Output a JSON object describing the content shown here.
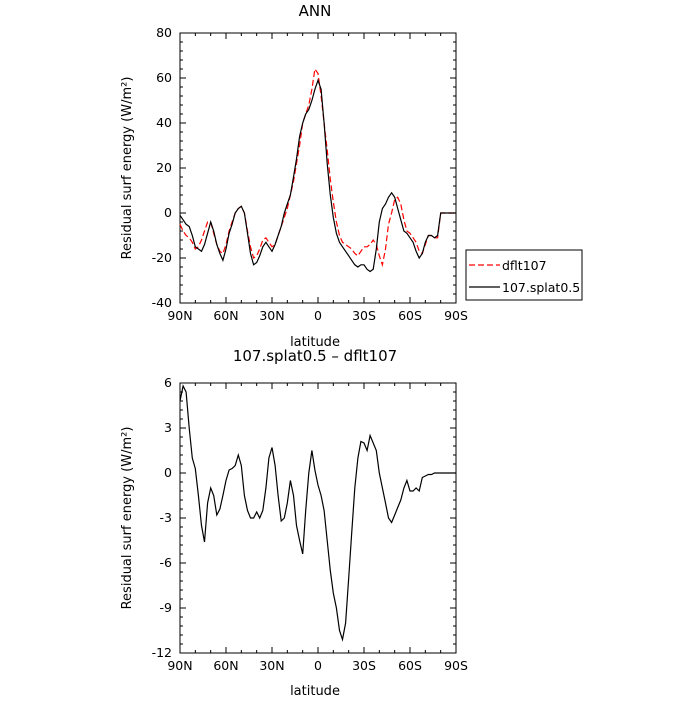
{
  "chart_data": [
    {
      "type": "line",
      "title": "ANN",
      "xlabel": "latitude",
      "ylabel": "Residual surf energy (W/m²)",
      "ylim": [
        -40,
        80
      ],
      "yticks": [
        "80",
        "60",
        "40",
        "20",
        "0",
        "-20",
        "-40"
      ],
      "xlim": [
        90,
        -90
      ],
      "xticks": [
        "90N",
        "60N",
        "30N",
        "0",
        "30S",
        "60S",
        "90S"
      ],
      "legend": "right",
      "series": [
        {
          "name": "dflt107",
          "color": "#ff0000",
          "style": "dashed",
          "x": [
            90,
            88,
            86,
            84,
            82,
            80,
            78,
            76,
            74,
            72,
            70,
            68,
            66,
            64,
            62,
            60,
            58,
            56,
            54,
            52,
            50,
            48,
            46,
            44,
            42,
            40,
            38,
            36,
            34,
            32,
            30,
            28,
            26,
            24,
            22,
            20,
            18,
            16,
            14,
            12,
            10,
            8,
            6,
            4,
            2,
            0,
            -2,
            -4,
            -6,
            -8,
            -10,
            -12,
            -14,
            -16,
            -18,
            -20,
            -22,
            -24,
            -26,
            -28,
            -30,
            -32,
            -34,
            -36,
            -38,
            -40,
            -42,
            -44,
            -46,
            -48,
            -50,
            -52,
            -54,
            -56,
            -58,
            -60,
            -62,
            -64,
            -66,
            -68,
            -70,
            -72,
            -74,
            -76,
            -78,
            -80,
            -82,
            -84,
            -86,
            -88,
            -90
          ],
          "y": [
            -5,
            -8,
            -10,
            -11,
            -13,
            -16,
            -15,
            -12,
            -8,
            -4,
            -4,
            -9,
            -14,
            -17,
            -18,
            -14,
            -8,
            -4,
            0,
            2,
            3,
            0,
            -8,
            -15,
            -20,
            -19,
            -16,
            -12,
            -11,
            -13,
            -15,
            -14,
            -10,
            -6,
            -2,
            2,
            8,
            14,
            22,
            30,
            40,
            44,
            48,
            55,
            64,
            62,
            52,
            40,
            28,
            15,
            5,
            -4,
            -10,
            -13,
            -14,
            -15,
            -16,
            -18,
            -19,
            -17,
            -15,
            -15,
            -14,
            -12,
            -14,
            -19,
            -23,
            -16,
            -5,
            0,
            6,
            7,
            4,
            -3,
            -8,
            -9,
            -11,
            -13,
            -17,
            -18,
            -14,
            -10,
            -10,
            -11,
            -11,
            0,
            0,
            0,
            0,
            0,
            0
          ]
        },
        {
          "name": "107.splat0.5",
          "color": "#000000",
          "style": "solid",
          "x": [
            90,
            88,
            86,
            84,
            82,
            80,
            78,
            76,
            74,
            72,
            70,
            68,
            66,
            64,
            62,
            60,
            58,
            56,
            54,
            52,
            50,
            48,
            46,
            44,
            42,
            40,
            38,
            36,
            34,
            32,
            30,
            28,
            26,
            24,
            22,
            20,
            18,
            16,
            14,
            12,
            10,
            8,
            6,
            4,
            2,
            0,
            -2,
            -4,
            -6,
            -8,
            -10,
            -12,
            -14,
            -16,
            -18,
            -20,
            -22,
            -24,
            -26,
            -28,
            -30,
            -32,
            -34,
            -36,
            -38,
            -40,
            -42,
            -44,
            -46,
            -48,
            -50,
            -52,
            -54,
            -56,
            -58,
            -60,
            -62,
            -64,
            -66,
            -68,
            -70,
            -72,
            -74,
            -76,
            -78,
            -80,
            -82,
            -84,
            -86,
            -88,
            -90
          ],
          "y": [
            -1,
            -3,
            -5,
            -6,
            -10,
            -15,
            -16,
            -17,
            -14,
            -9,
            -4,
            -8,
            -14,
            -18,
            -21,
            -16,
            -9,
            -5,
            0,
            2,
            3,
            0,
            -9,
            -18,
            -23,
            -22,
            -19,
            -15,
            -13,
            -15,
            -17,
            -14,
            -10,
            -6,
            0,
            4,
            8,
            16,
            24,
            34,
            40,
            44,
            46,
            50,
            55,
            59,
            55,
            40,
            22,
            8,
            -2,
            -9,
            -13,
            -15,
            -17,
            -19,
            -21,
            -23,
            -24,
            -23,
            -23,
            -25,
            -26,
            -25,
            -16,
            -4,
            2,
            4,
            7,
            9,
            7,
            2,
            -3,
            -8,
            -9,
            -11,
            -13,
            -17,
            -20,
            -18,
            -13,
            -10,
            -10,
            -11,
            -10,
            0,
            0,
            0,
            0,
            0,
            0
          ]
        }
      ]
    },
    {
      "type": "line",
      "title": "107.splat0.5 – dflt107",
      "xlabel": "latitude",
      "ylabel": "Residual surf energy (W/m²)",
      "ylim": [
        -12,
        6
      ],
      "yticks": [
        "6",
        "3",
        "0",
        "-3",
        "-6",
        "-9",
        "-12"
      ],
      "xlim": [
        90,
        -90
      ],
      "xticks": [
        "90N",
        "60N",
        "30N",
        "0",
        "30S",
        "60S",
        "90S"
      ],
      "series": [
        {
          "color": "#000000",
          "style": "solid",
          "x": [
            90,
            88,
            86,
            84,
            82,
            80,
            78,
            76,
            74,
            72,
            70,
            68,
            66,
            64,
            62,
            60,
            58,
            56,
            54,
            52,
            50,
            48,
            46,
            44,
            42,
            40,
            38,
            36,
            34,
            32,
            30,
            28,
            26,
            24,
            22,
            20,
            18,
            16,
            14,
            12,
            10,
            8,
            6,
            4,
            2,
            0,
            -2,
            -4,
            -6,
            -8,
            -10,
            -12,
            -14,
            -16,
            -18,
            -20,
            -22,
            -24,
            -26,
            -28,
            -30,
            -32,
            -34,
            -36,
            -38,
            -40,
            -42,
            -44,
            -46,
            -48,
            -50,
            -52,
            -54,
            -56,
            -58,
            -60,
            -62,
            -64,
            -66,
            -68,
            -70,
            -72,
            -74,
            -76,
            -78,
            -80,
            -82,
            -84,
            -86,
            -88,
            -90
          ],
          "y": [
            4.8,
            5.8,
            5.4,
            3,
            1,
            0.3,
            -1.5,
            -3.5,
            -4.6,
            -2,
            -1,
            -1.5,
            -2.8,
            -2.4,
            -1.5,
            -0.5,
            0.2,
            0.3,
            0.5,
            1.2,
            0.5,
            -1.5,
            -2.5,
            -3,
            -3,
            -2.6,
            -3,
            -2.5,
            -1,
            1,
            1.7,
            0.5,
            -1.5,
            -3.2,
            -3,
            -2,
            -0.5,
            -1.5,
            -3.5,
            -4.5,
            -5.4,
            -2.5,
            0,
            1.5,
            0.2,
            -0.8,
            -1.5,
            -2.5,
            -4.5,
            -6.5,
            -8,
            -9,
            -10.5,
            -11.1,
            -10,
            -7,
            -4,
            -1,
            1,
            2.1,
            2,
            1.5,
            2.5,
            2,
            1.5,
            0,
            -1,
            -2,
            -3,
            -3.3,
            -2.8,
            -2.3,
            -1.8,
            -1,
            -0.5,
            -1.2,
            -1.2,
            -1,
            -1.2,
            -0.3,
            -0.2,
            -0.1,
            -0.1,
            0,
            0,
            0,
            0,
            0,
            0,
            0,
            0
          ]
        }
      ]
    }
  ]
}
